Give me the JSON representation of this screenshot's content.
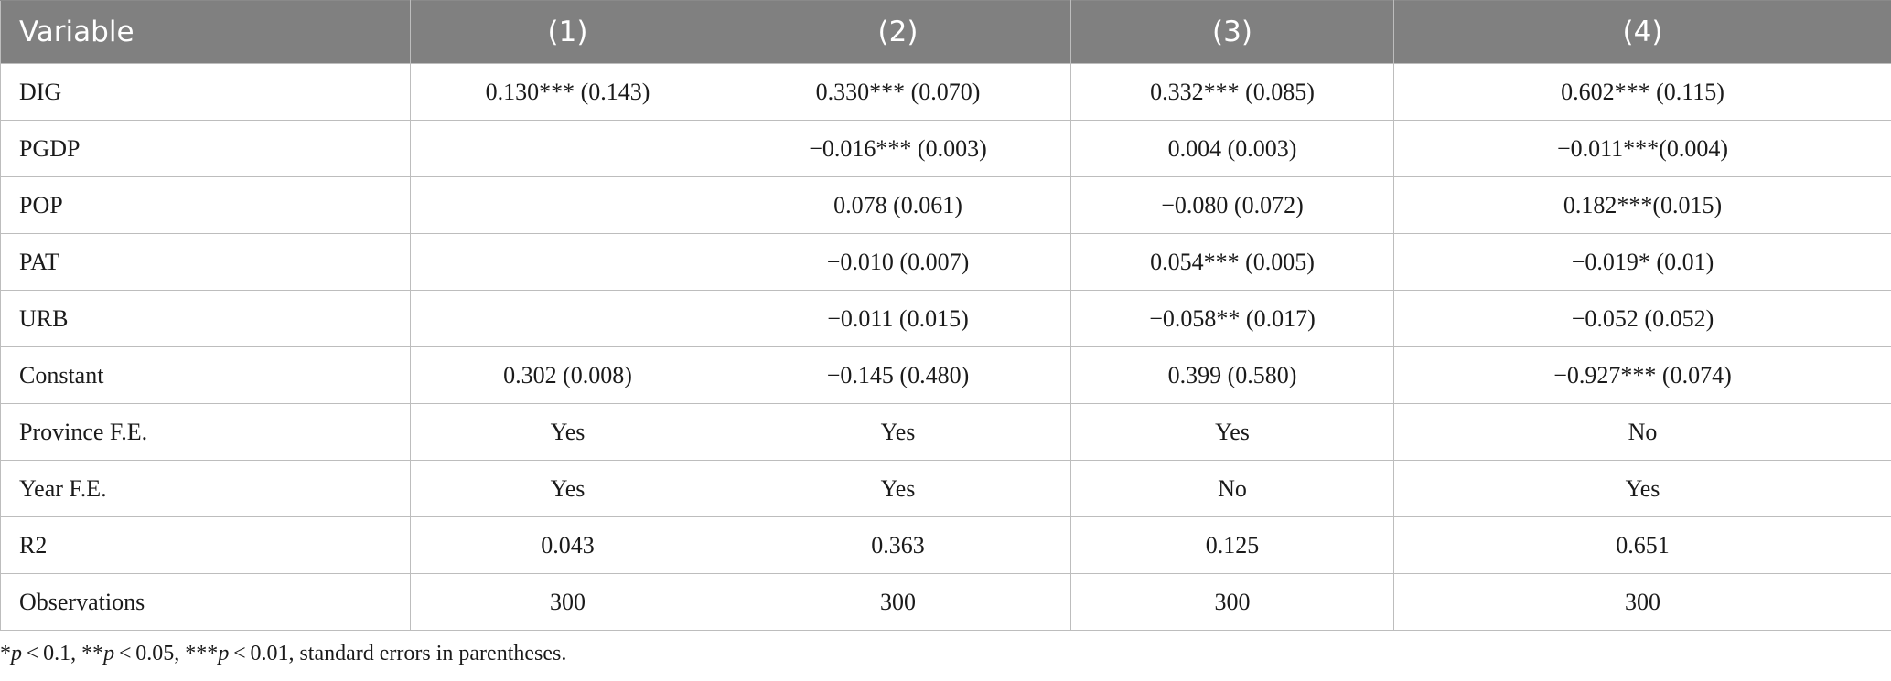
{
  "table": {
    "headers": [
      "Variable",
      "(1)",
      "(2)",
      "(3)",
      "(4)"
    ],
    "rows": [
      [
        "DIG",
        "0.130*** (0.143)",
        "0.330*** (0.070)",
        "0.332*** (0.085)",
        "0.602*** (0.115)"
      ],
      [
        "PGDP",
        "",
        "−0.016*** (0.003)",
        "0.004 (0.003)",
        "−0.011***(0.004)"
      ],
      [
        "POP",
        "",
        "0.078 (0.061)",
        "−0.080 (0.072)",
        "0.182***(0.015)"
      ],
      [
        "PAT",
        "",
        "−0.010 (0.007)",
        "0.054*** (0.005)",
        "−0.019* (0.01)"
      ],
      [
        "URB",
        "",
        "−0.011 (0.015)",
        "−0.058** (0.017)",
        "−0.052 (0.052)"
      ],
      [
        "Constant",
        "0.302 (0.008)",
        "−0.145 (0.480)",
        "0.399 (0.580)",
        "−0.927*** (0.074)"
      ],
      [
        "Province F.E.",
        "Yes",
        "Yes",
        "Yes",
        "No"
      ],
      [
        "Year F.E.",
        "Yes",
        "Yes",
        "No",
        "Yes"
      ],
      [
        "R2",
        "0.043",
        "0.363",
        "0.125",
        "0.651"
      ],
      [
        "Observations",
        "300",
        "300",
        "300",
        "300"
      ]
    ]
  },
  "footnote": {
    "p1_prefix": "*",
    "p1_symbol": "p",
    "p1_rest": " < 0.1, **",
    "p2_symbol": "p",
    "p2_rest": " < 0.05, ***",
    "p3_symbol": "p",
    "p3_rest": " < 0.01, standard errors in parentheses."
  }
}
